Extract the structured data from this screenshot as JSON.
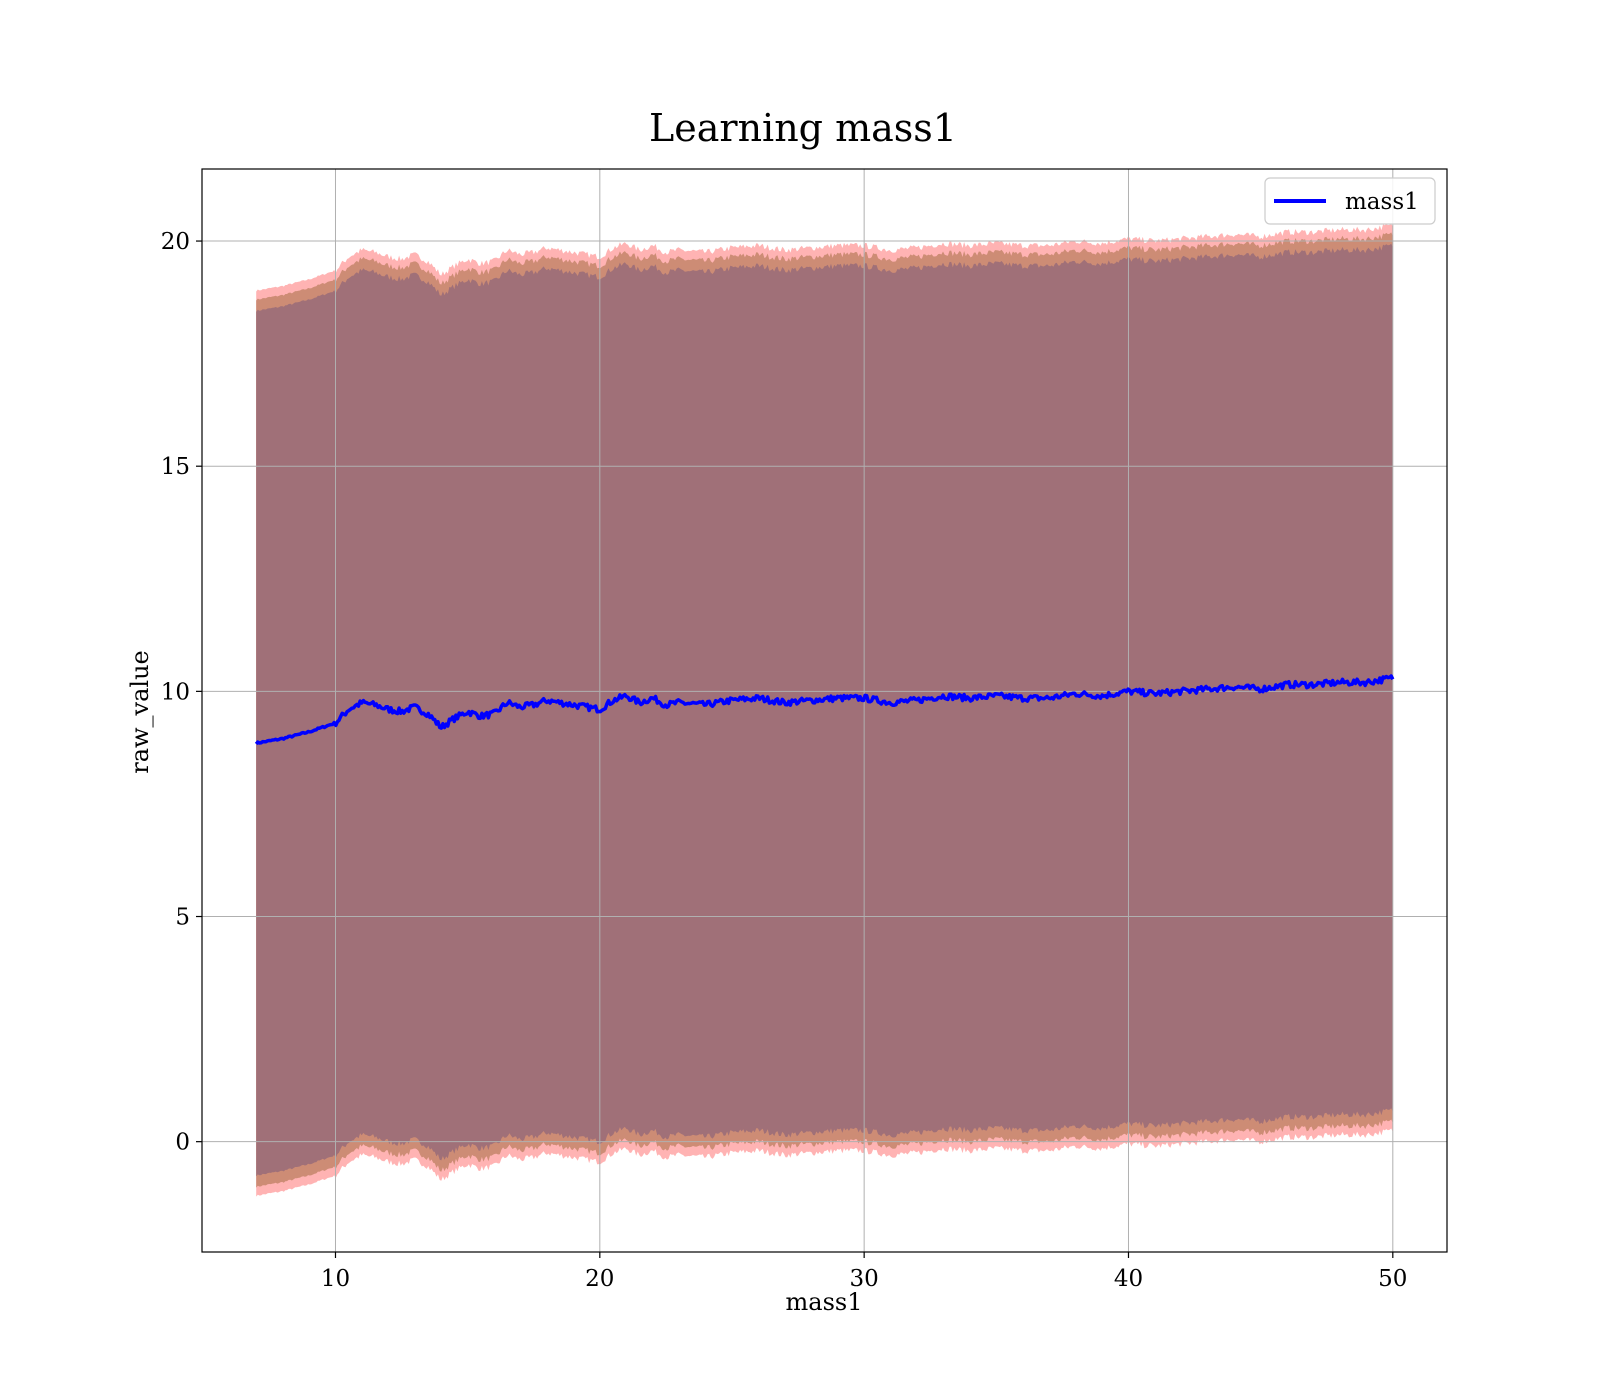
{
  "chart_data": {
    "type": "line",
    "title": "Learning mass1",
    "xlabel": "mass1",
    "ylabel": "raw_value",
    "xlim": [
      4.95,
      52.05
    ],
    "ylim": [
      -2.45,
      21.6
    ],
    "xticks": [
      10,
      20,
      30,
      40,
      50
    ],
    "yticks": [
      0,
      5,
      10,
      15,
      20
    ],
    "grid": true,
    "legend_position": "top-right",
    "colors": {
      "line": "#0000ff",
      "band_outer": "#ff9999",
      "band_middle": "#c8876e",
      "band_inner": "#a07078"
    },
    "series": [
      {
        "name": "mass1",
        "x": [
          7,
          8,
          9,
          10,
          10.5,
          11,
          11.5,
          12,
          12.5,
          13,
          13.5,
          14,
          14.5,
          15,
          15.5,
          16,
          16.5,
          17,
          17.5,
          18,
          18.5,
          19,
          19.5,
          20,
          20.5,
          21,
          21.5,
          22,
          22.5,
          23,
          24,
          25,
          26,
          27,
          28,
          29,
          30,
          31,
          32,
          33,
          34,
          35,
          36,
          37,
          38,
          39,
          40,
          41,
          42,
          43,
          44,
          45,
          46,
          47,
          48,
          49,
          50
        ],
        "y": [
          8.85,
          8.95,
          9.1,
          9.3,
          9.6,
          9.75,
          9.7,
          9.6,
          9.55,
          9.65,
          9.5,
          9.2,
          9.4,
          9.55,
          9.45,
          9.5,
          9.75,
          9.65,
          9.7,
          9.8,
          9.75,
          9.7,
          9.65,
          9.6,
          9.8,
          9.9,
          9.75,
          9.85,
          9.7,
          9.75,
          9.7,
          9.8,
          9.85,
          9.75,
          9.8,
          9.85,
          9.85,
          9.75,
          9.8,
          9.9,
          9.85,
          9.9,
          9.85,
          9.85,
          9.95,
          9.9,
          10.0,
          9.95,
          10.0,
          10.05,
          10.1,
          10.05,
          10.15,
          10.15,
          10.2,
          10.2,
          10.3
        ]
      }
    ]
  }
}
